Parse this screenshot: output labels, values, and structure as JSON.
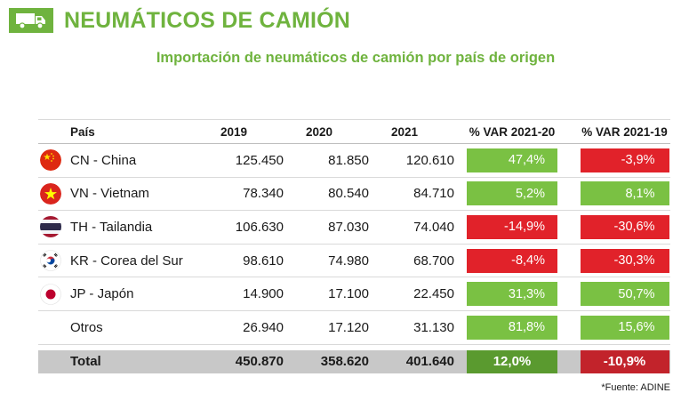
{
  "header": {
    "title": "NEUMÁTICOS DE CAMIÓN",
    "icon": "truck-icon",
    "accent_color": "#6fb33e"
  },
  "subtitle": "Importación de neumáticos de camión por país de origen",
  "table": {
    "columns": [
      "País",
      "2019",
      "2020",
      "2021",
      "% VAR 2021-20",
      "% VAR 2021-19"
    ],
    "rows": [
      {
        "flag": "china-flag-icon",
        "country": "CN - China",
        "y2019": "125.450",
        "y2020": "81.850",
        "y2021": "120.610",
        "var2120": "47,4%",
        "var2119": "-3,9%"
      },
      {
        "flag": "vietnam-flag-icon",
        "country": "VN - Vietnam",
        "y2019": "78.340",
        "y2020": "80.540",
        "y2021": "84.710",
        "var2120": "5,2%",
        "var2119": "8,1%"
      },
      {
        "flag": "thailand-flag-icon",
        "country": "TH - Tailandia",
        "y2019": "106.630",
        "y2020": "87.030",
        "y2021": "74.040",
        "var2120": "-14,9%",
        "var2119": "-30,6%"
      },
      {
        "flag": "korea-flag-icon",
        "country": "KR - Corea del Sur",
        "y2019": "98.610",
        "y2020": "74.980",
        "y2021": "68.700",
        "var2120": "-8,4%",
        "var2119": "-30,3%"
      },
      {
        "flag": "japan-flag-icon",
        "country": "JP - Japón",
        "y2019": "14.900",
        "y2020": "17.100",
        "y2021": "22.450",
        "var2120": "31,3%",
        "var2119": "50,7%"
      },
      {
        "flag": "",
        "country": "Otros",
        "y2019": "26.940",
        "y2020": "17.120",
        "y2021": "31.130",
        "var2120": "81,8%",
        "var2119": "15,6%"
      }
    ],
    "total": {
      "label": "Total",
      "y2019": "450.870",
      "y2020": "358.620",
      "y2021": "401.640",
      "var2120": "12,0%",
      "var2119": "-10,9%"
    },
    "colors": {
      "positive": "#7ac143",
      "negative": "#e1222a",
      "total_bg": "#c8c8c8"
    }
  },
  "footnote": "*Fuente: ADINE"
}
